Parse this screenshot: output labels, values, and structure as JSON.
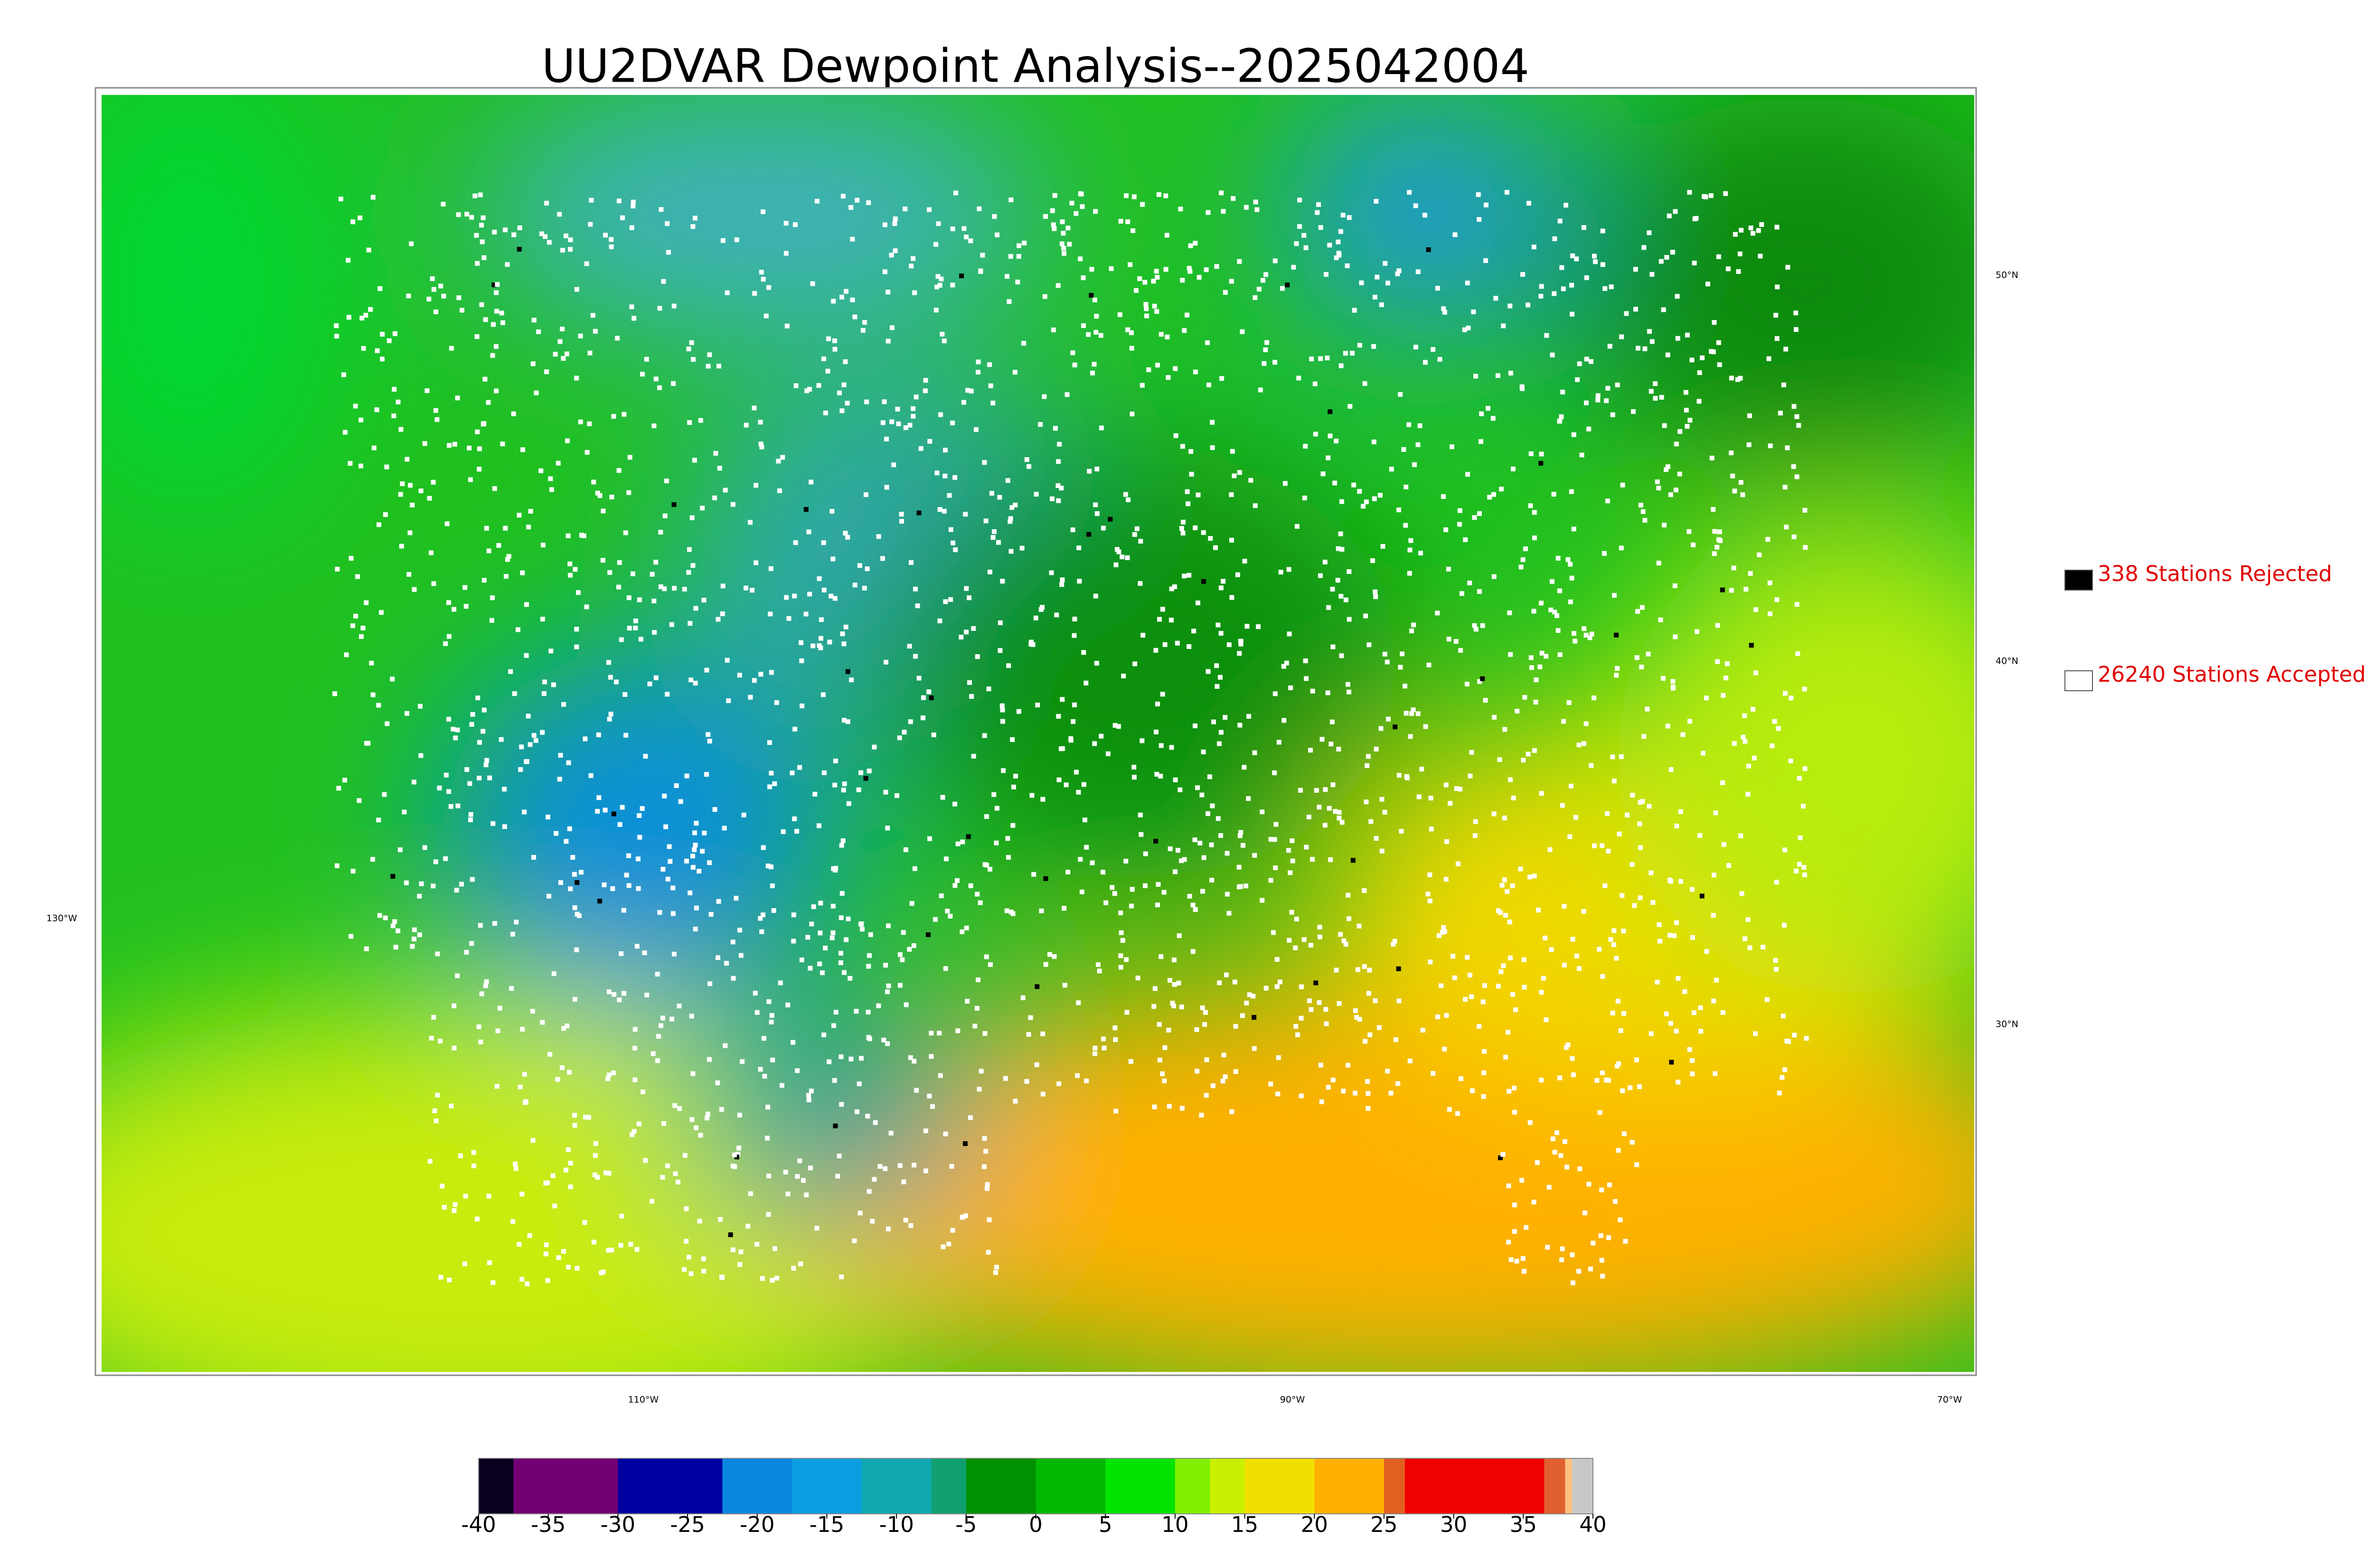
{
  "title": "UU2DVAR Dewpoint Analysis--2025042004",
  "map": {
    "lat_labels": [
      "50°N",
      "40°N",
      "30°N"
    ],
    "lon_labels": [
      "130°W",
      "110°W",
      "90°W",
      "70°W"
    ]
  },
  "legend": [
    {
      "label": "338 Stations Rejected",
      "color": "#000000"
    },
    {
      "label": "26240 Stations Accepted",
      "color": "#ffffff"
    }
  ],
  "colorbar": {
    "range": [
      -40,
      40
    ],
    "ticks": [
      -40,
      -35,
      -30,
      -25,
      -20,
      -15,
      -10,
      -5,
      0,
      5,
      10,
      15,
      20,
      25,
      30,
      35,
      40
    ],
    "segments": [
      {
        "from": -40,
        "to": -37.5,
        "color": "#0a0020"
      },
      {
        "from": -37.5,
        "to": -30,
        "color": "#730073"
      },
      {
        "from": -30,
        "to": -22.5,
        "color": "#0000a0"
      },
      {
        "from": -22.5,
        "to": -17.5,
        "color": "#0a86e0"
      },
      {
        "from": -17.5,
        "to": -12.5,
        "color": "#0a9ee0"
      },
      {
        "from": -12.5,
        "to": -7.5,
        "color": "#10a8b0"
      },
      {
        "from": -7.5,
        "to": -5,
        "color": "#10a070"
      },
      {
        "from": -5,
        "to": 0,
        "color": "#009000"
      },
      {
        "from": 0,
        "to": 5,
        "color": "#00b800"
      },
      {
        "from": 5,
        "to": 10,
        "color": "#00e400"
      },
      {
        "from": 10,
        "to": 12.5,
        "color": "#80f000"
      },
      {
        "from": 12.5,
        "to": 15,
        "color": "#c8f000"
      },
      {
        "from": 15,
        "to": 20,
        "color": "#f0e000"
      },
      {
        "from": 20,
        "to": 25,
        "color": "#ffb000"
      },
      {
        "from": 25,
        "to": 26.5,
        "color": "#e06020"
      },
      {
        "from": 26.5,
        "to": 36.5,
        "color": "#f00000"
      },
      {
        "from": 36.5,
        "to": 38,
        "color": "#e06030"
      },
      {
        "from": 38,
        "to": 38.5,
        "color": "#ffc080"
      },
      {
        "from": 38.5,
        "to": 40,
        "color": "#c8c8c8"
      }
    ]
  }
}
